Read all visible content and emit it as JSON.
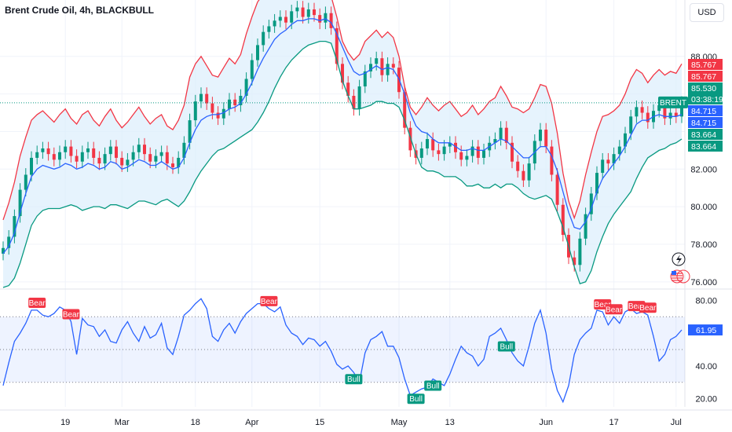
{
  "header": {
    "title": "Brent Crude Oil, 4h, BLACKBULL",
    "currency": "USD"
  },
  "colors": {
    "upper_band": "#f23645",
    "lower_band": "#089981",
    "basis": "#2962ff",
    "band_fill": "#dbeefc",
    "rsi_line": "#2962ff",
    "up_candle": "#089981",
    "down_candle": "#f23645",
    "bear_label": "#f23645",
    "bull_label": "#089981"
  },
  "side_icons": [
    "lightning-icon",
    "us-flag-icon"
  ],
  "chart_data": [
    {
      "type": "line",
      "name": "price-panel",
      "title": "Brent Crude Oil, 4h, BLACKBULL",
      "ylim": [
        75.7,
        91.0
      ],
      "yticks": [
        76.0,
        78.0,
        80.0,
        82.0,
        84.0,
        86.0,
        88.0
      ],
      "ytick_labels": [
        "76.000",
        "78.000",
        "80.000",
        "82.000",
        "",
        "",
        "88.000"
      ],
      "xlim": [
        0,
        120
      ],
      "xticks": [
        {
          "x": 11,
          "label": "19"
        },
        {
          "x": 21,
          "label": "Mar"
        },
        {
          "x": 34,
          "label": "18"
        },
        {
          "x": 44,
          "label": "Apr"
        },
        {
          "x": 56,
          "label": "15"
        },
        {
          "x": 70,
          "label": "May"
        },
        {
          "x": 79,
          "label": "13"
        },
        {
          "x": 96,
          "label": "Jun"
        },
        {
          "x": 108,
          "label": "17"
        },
        {
          "x": 119,
          "label": "Jul"
        }
      ],
      "close": [
        77.8,
        78.4,
        79.5,
        80.9,
        81.7,
        82.6,
        82.9,
        83.1,
        82.8,
        82.5,
        82.9,
        83.2,
        82.7,
        82.4,
        82.9,
        83.1,
        82.6,
        82.3,
        82.8,
        83.2,
        82.6,
        82.2,
        82.5,
        82.9,
        83.3,
        82.8,
        82.4,
        82.7,
        82.9,
        82.3,
        82.1,
        82.6,
        83.4,
        84.6,
        85.6,
        86.0,
        85.5,
        85.0,
        84.7,
        85.2,
        85.7,
        85.4,
        85.9,
        86.8,
        87.8,
        88.6,
        89.3,
        89.6,
        89.9,
        90.1,
        89.8,
        90.4,
        90.6,
        90.1,
        90.5,
        90.2,
        89.8,
        90.3,
        89.5,
        87.6,
        86.6,
        85.9,
        85.2,
        86.4,
        87.2,
        87.6,
        87.9,
        87.0,
        87.6,
        87.4,
        86.1,
        84.2,
        83.0,
        82.6,
        83.1,
        83.6,
        83.0,
        82.8,
        83.2,
        83.4,
        82.9,
        82.5,
        82.7,
        83.2,
        82.6,
        83.0,
        83.4,
        83.6,
        84.2,
        83.4,
        82.4,
        81.9,
        81.4,
        82.3,
        83.5,
        84.1,
        83.2,
        81.7,
        80.1,
        78.5,
        77.3,
        76.9,
        78.3,
        79.6,
        80.7,
        81.8,
        82.5,
        82.3,
        82.8,
        83.2,
        83.9,
        84.8,
        85.3,
        85.0,
        84.5,
        85.1,
        85.4,
        84.7,
        85.0,
        84.8,
        85.53
      ],
      "series": [
        {
          "name": "upper",
          "values": [
            79.3,
            80.2,
            81.3,
            82.7,
            83.7,
            84.6,
            84.9,
            85.1,
            84.8,
            84.5,
            84.9,
            85.2,
            84.7,
            84.4,
            84.9,
            85.1,
            84.6,
            84.3,
            84.8,
            85.2,
            84.6,
            84.2,
            84.5,
            84.9,
            85.3,
            84.8,
            84.4,
            84.7,
            84.9,
            84.3,
            84.1,
            84.6,
            85.4,
            86.9,
            87.6,
            88.0,
            87.5,
            87.0,
            86.9,
            87.4,
            87.9,
            87.6,
            88.1,
            89.2,
            90.1,
            90.9,
            91.3,
            91.4,
            91.4,
            91.5,
            91.2,
            91.6,
            91.8,
            91.3,
            91.7,
            91.4,
            91.2,
            91.5,
            91.2,
            90.1,
            88.8,
            88.2,
            87.8,
            88.1,
            88.8,
            89.1,
            89.4,
            89.0,
            89.3,
            89.0,
            88.0,
            86.4,
            85.3,
            84.9,
            85.3,
            85.8,
            85.4,
            85.1,
            85.4,
            85.6,
            85.2,
            84.8,
            85.0,
            85.4,
            84.9,
            85.2,
            85.6,
            85.8,
            86.4,
            85.9,
            85.3,
            85.2,
            85.0,
            85.2,
            85.8,
            86.5,
            86.4,
            85.5,
            83.9,
            81.8,
            80.3,
            79.4,
            80.3,
            81.7,
            82.9,
            84.0,
            84.8,
            84.9,
            85.1,
            85.4,
            86.0,
            86.8,
            87.3,
            87.1,
            86.6,
            87.0,
            87.3,
            87.0,
            87.2,
            87.1,
            87.6
          ]
        },
        {
          "name": "basis",
          "values": [
            77.5,
            77.9,
            78.6,
            79.7,
            80.7,
            81.6,
            82.0,
            82.2,
            82.1,
            82.0,
            82.1,
            82.3,
            82.2,
            82.0,
            82.1,
            82.3,
            82.2,
            82.0,
            82.1,
            82.4,
            82.3,
            82.0,
            82.1,
            82.3,
            82.5,
            82.4,
            82.2,
            82.2,
            82.4,
            82.2,
            82.0,
            82.1,
            82.6,
            83.4,
            84.1,
            84.6,
            84.8,
            84.9,
            84.9,
            85.0,
            85.2,
            85.3,
            85.5,
            86.0,
            86.6,
            87.3,
            87.9,
            88.4,
            88.9,
            89.2,
            89.4,
            89.7,
            89.9,
            89.9,
            90.0,
            90.0,
            89.9,
            90.0,
            89.8,
            89.2,
            88.5,
            87.8,
            87.2,
            87.0,
            87.1,
            87.3,
            87.5,
            87.3,
            87.4,
            87.3,
            86.8,
            86.0,
            85.0,
            84.3,
            84.0,
            83.9,
            83.6,
            83.4,
            83.4,
            83.4,
            83.2,
            83.0,
            83.0,
            83.1,
            83.0,
            83.0,
            83.2,
            83.4,
            83.6,
            83.5,
            83.2,
            82.9,
            82.6,
            82.6,
            82.9,
            83.2,
            83.2,
            82.7,
            81.9,
            80.8,
            79.7,
            78.9,
            78.8,
            79.2,
            79.9,
            80.8,
            81.5,
            81.9,
            82.3,
            82.7,
            83.2,
            83.8,
            84.4,
            84.6,
            84.6,
            84.8,
            84.9,
            84.8,
            84.8,
            84.8,
            84.9
          ]
        },
        {
          "name": "lower",
          "values": [
            75.7,
            75.8,
            76.2,
            77.0,
            78.0,
            79.0,
            79.5,
            79.8,
            79.9,
            79.9,
            79.9,
            80.0,
            80.1,
            80.0,
            79.8,
            79.9,
            80.0,
            80.0,
            79.9,
            80.1,
            80.1,
            80.0,
            79.9,
            80.1,
            80.3,
            80.3,
            80.2,
            80.1,
            80.3,
            80.4,
            80.2,
            80.0,
            80.3,
            80.8,
            81.4,
            81.9,
            82.3,
            82.7,
            83.0,
            83.1,
            83.3,
            83.5,
            83.7,
            83.9,
            84.1,
            84.5,
            85.0,
            85.6,
            86.3,
            86.9,
            87.4,
            87.8,
            88.1,
            88.4,
            88.6,
            88.7,
            88.8,
            88.8,
            88.7,
            87.8,
            86.7,
            85.9,
            85.2,
            85.2,
            85.3,
            85.4,
            85.6,
            85.6,
            85.5,
            85.5,
            85.3,
            84.6,
            83.7,
            82.8,
            82.1,
            81.9,
            81.9,
            81.8,
            81.6,
            81.6,
            81.6,
            81.4,
            81.1,
            81.1,
            81.2,
            81.0,
            81.0,
            81.2,
            81.0,
            81.2,
            81.2,
            81.0,
            80.7,
            80.5,
            80.4,
            80.5,
            80.6,
            80.4,
            79.7,
            78.9,
            77.9,
            76.8,
            75.9,
            76.0,
            76.6,
            77.6,
            78.4,
            79.1,
            79.6,
            80.0,
            80.4,
            80.8,
            81.5,
            82.1,
            82.6,
            82.8,
            83.0,
            83.1,
            83.3,
            83.4,
            83.6
          ]
        }
      ],
      "price_labels": [
        {
          "value": 85.767,
          "text": "85.767",
          "color": "#f23645"
        },
        {
          "value": 85.767,
          "text": "85.767",
          "color": "#f23645"
        },
        {
          "value": 85.53,
          "text": "85.530",
          "color": "#089981"
        },
        {
          "value": 85.53,
          "text": "03:38:19",
          "color": "#089981"
        },
        {
          "value": 84.715,
          "text": "84.715",
          "color": "#2962ff"
        },
        {
          "value": 84.715,
          "text": "84.715",
          "color": "#2962ff"
        },
        {
          "value": 83.664,
          "text": "83.664",
          "color": "#089981"
        },
        {
          "value": 83.664,
          "text": "83.664",
          "color": "#089981"
        }
      ],
      "symbol_tag": "BRENT",
      "last_price_line": 85.53
    },
    {
      "type": "line",
      "name": "rsi-panel",
      "ylim": [
        15,
        85
      ],
      "yticks": [
        20,
        40,
        60,
        80
      ],
      "ytick_labels": [
        "20.00",
        "40.00",
        "",
        "80.00"
      ],
      "overbought": 70,
      "mid": 50,
      "oversold": 30,
      "last_value": 61.95,
      "last_label": "61.95",
      "xlim": [
        0,
        120
      ],
      "values": [
        28,
        42,
        55,
        60,
        66,
        74,
        74,
        71,
        70,
        72,
        76,
        74,
        67,
        47,
        69,
        65,
        64,
        58,
        62,
        55,
        54,
        62,
        67,
        60,
        55,
        64,
        57,
        59,
        66,
        51,
        47,
        58,
        71,
        74,
        78,
        81,
        75,
        58,
        55,
        62,
        66,
        60,
        67,
        72,
        75,
        78,
        78,
        75,
        73,
        76,
        65,
        60,
        58,
        53,
        57,
        56,
        52,
        55,
        49,
        41,
        38,
        40,
        36,
        30,
        48,
        56,
        58,
        61,
        52,
        52,
        45,
        32,
        22,
        24,
        26,
        27,
        32,
        30,
        28,
        35,
        44,
        52,
        48,
        46,
        40,
        44,
        58,
        60,
        63,
        56,
        48,
        43,
        40,
        52,
        66,
        74,
        60,
        38,
        25,
        18,
        28,
        47,
        56,
        60,
        63,
        74,
        73,
        65,
        70,
        66,
        73,
        75,
        72,
        73,
        71,
        58,
        43,
        47,
        56,
        58,
        62
      ],
      "signals": [
        {
          "i": 6,
          "text": "Bear",
          "type": "bear"
        },
        {
          "i": 12,
          "text": "Bear",
          "type": "bear"
        },
        {
          "i": 47,
          "text": "Bear",
          "type": "bear"
        },
        {
          "i": 62,
          "text": "Bull",
          "type": "bull"
        },
        {
          "i": 73,
          "text": "Bull",
          "type": "bull"
        },
        {
          "i": 76,
          "text": "Bull",
          "type": "bull"
        },
        {
          "i": 89,
          "text": "Bull",
          "type": "bull"
        },
        {
          "i": 106,
          "text": "Bear",
          "type": "bear"
        },
        {
          "i": 108,
          "text": "Bear",
          "type": "bear"
        },
        {
          "i": 112,
          "text": "Bear",
          "type": "bear"
        },
        {
          "i": 114,
          "text": "Bear",
          "type": "bear"
        }
      ]
    }
  ]
}
